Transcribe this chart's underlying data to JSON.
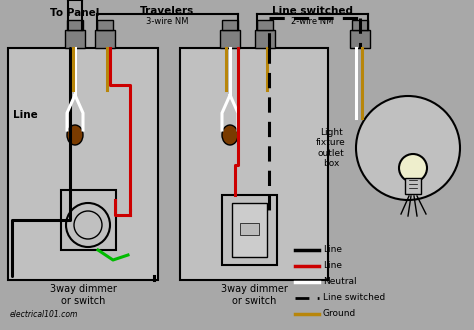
{
  "bg_color": "#a8a8a8",
  "box_face": "#b8b8b8",
  "box_edge": "#000000",
  "BLACK": "#000000",
  "RED": "#cc0000",
  "WHITE": "#ffffff",
  "GOLD": "#b8860b",
  "GREEN": "#00bb00",
  "BROWN": "#7a3b00",
  "LGRAY": "#c0c0c0",
  "DGRAY": "#808080",
  "box1_label": "3way dimmer\nor switch",
  "box2_label": "3way dimmer\nor switch",
  "label_to_panel": "To Panel",
  "label_travelers": "Travelers",
  "label_line_switched": "Line switched",
  "label_3wire": "3-wire NM",
  "label_2wire": "2-wire NM",
  "label_line": "Line",
  "label_fixture": "Light\nfixture\noutlet\nbox",
  "watermark": "electrical101.com",
  "legend": [
    {
      "color": "#000000",
      "style": "solid",
      "label": "Line"
    },
    {
      "color": "#cc0000",
      "style": "solid",
      "label": "Line"
    },
    {
      "color": "#ffffff",
      "style": "solid",
      "label": "Neutral"
    },
    {
      "color": "#000000",
      "style": "dashed",
      "label": "Line switched"
    },
    {
      "color": "#b8860b",
      "style": "solid",
      "label": "Ground"
    }
  ]
}
